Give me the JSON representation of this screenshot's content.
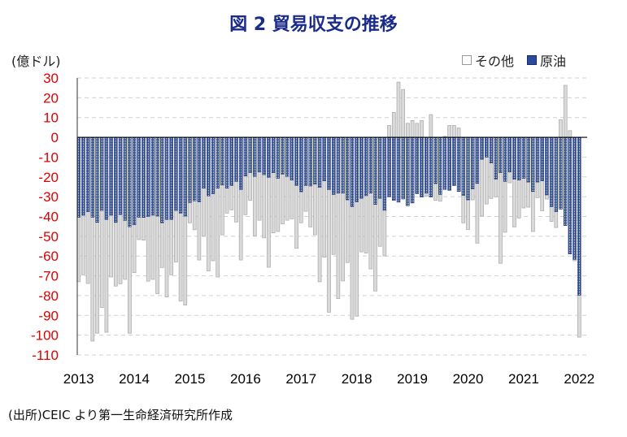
{
  "chart_data": {
    "type": "bar",
    "stacked": true,
    "title": "図 2  貿易収支の推移",
    "ylabel": "(億ドル)",
    "xlabel": "",
    "ylim": [
      -110,
      30
    ],
    "yticks": [
      30,
      20,
      10,
      0,
      -10,
      -20,
      -30,
      -40,
      -50,
      -60,
      -70,
      -80,
      -90,
      -100,
      -110
    ],
    "xticks": [
      "2013",
      "2014",
      "2015",
      "2016",
      "2017",
      "2018",
      "2019",
      "2020",
      "2021",
      "2022"
    ],
    "x_range": "2013-01 to 2022-01 (monthly)",
    "grid": true,
    "legend_position": "top-right",
    "series": [
      {
        "name": "その他",
        "color": "#d9d9d9",
        "values": [
          -32.6,
          -30.1,
          -36.3,
          -62.6,
          -56,
          -49,
          -57,
          -31.2,
          -32.2,
          -35,
          -29.8,
          -53.8,
          -24.2,
          -11.3,
          -11.5,
          -32.7,
          -32.4,
          -39.2,
          -22.6,
          -39.2,
          -28,
          -26,
          -44.5,
          -45,
          -10.2,
          -14.6,
          -29.4,
          -24.3,
          -37.9,
          -33.9,
          -44.9,
          -25.2,
          -12.6,
          -12.4,
          -20.5,
          -35.6,
          -19.5,
          -14.1,
          -29.9,
          -24.4,
          -31.9,
          -45.5,
          -30.4,
          -26.9,
          -25.2,
          -22.1,
          -19.6,
          -31.8,
          -15.7,
          -13.1,
          -20.7,
          -25.6,
          -47.7,
          -38.6,
          -62,
          -30.3,
          -53.3,
          -44.4,
          -31.7,
          -57,
          -57.8,
          -27.1,
          -29,
          -38.3,
          -43.8,
          -24.3,
          -23,
          6,
          12.6,
          27.9,
          24.2,
          7.1,
          8.5,
          7.1,
          8.5,
          -1.6,
          11.5,
          -8.5,
          -3.4,
          0.5,
          6,
          6,
          4.7,
          -13.8,
          -15,
          -5.5,
          -30.2,
          -28.7,
          -23.7,
          -17.9,
          -8.9,
          -45.9,
          -25.7,
          -5.5,
          -24.1,
          -19.2,
          -15,
          -12.7,
          -20.2,
          -7.9,
          -15.1,
          -2.1,
          -7.5,
          -8,
          8.9,
          26.3,
          3.4,
          -0.7,
          -21.2
        ]
      },
      {
        "name": "原油",
        "color": "#2c4a9a",
        "values": [
          -40.4,
          -39.4,
          -37.6,
          -40.4,
          -43,
          -37,
          -41.5,
          -39.4,
          -43,
          -39,
          -42,
          -45.2,
          -44.2,
          -40.4,
          -40.5,
          -40,
          -39.4,
          -39.8,
          -43.2,
          -41.5,
          -41.5,
          -37,
          -38.3,
          -39.8,
          -33,
          -32.1,
          -32.6,
          -25.7,
          -29.6,
          -28.5,
          -25.7,
          -24.1,
          -25.7,
          -24.3,
          -22.3,
          -26.4,
          -19.6,
          -17.8,
          -19.8,
          -17.5,
          -18.9,
          -20.2,
          -17.9,
          -20.7,
          -18.6,
          -19.8,
          -21.6,
          -24.3,
          -27.5,
          -24.3,
          -24.6,
          -23.7,
          -25.3,
          -22,
          -26.4,
          -28.9,
          -28.2,
          -28.2,
          -31.6,
          -35,
          -32.6,
          -30.8,
          -29.5,
          -28.2,
          -33.9,
          -30.8,
          -36.9,
          -30.1,
          -31.9,
          -32.8,
          -31.2,
          -34.6,
          -33.2,
          -28.5,
          -30.2,
          -28.2,
          -30.2,
          -23.4,
          -28.9,
          -26.4,
          -26.8,
          -24.4,
          -27.4,
          -29.4,
          -31.6,
          -26.1,
          -23.3,
          -11.1,
          -10,
          -13,
          -21.2,
          -17.8,
          -22.3,
          -17.5,
          -21.2,
          -21.6,
          -20.7,
          -22.6,
          -27.4,
          -22.6,
          -22,
          -29.1,
          -35,
          -37.6,
          -36.3,
          -44.6,
          -59,
          -61.7,
          -79.8
        ]
      }
    ]
  },
  "source": "(出所)CEIC より第一生命経済研究所作成",
  "colors": {
    "oil": "#2c4a9a",
    "other": "#d9d9d9",
    "tick_label": "#e00000",
    "title": "#1a2b8c"
  }
}
